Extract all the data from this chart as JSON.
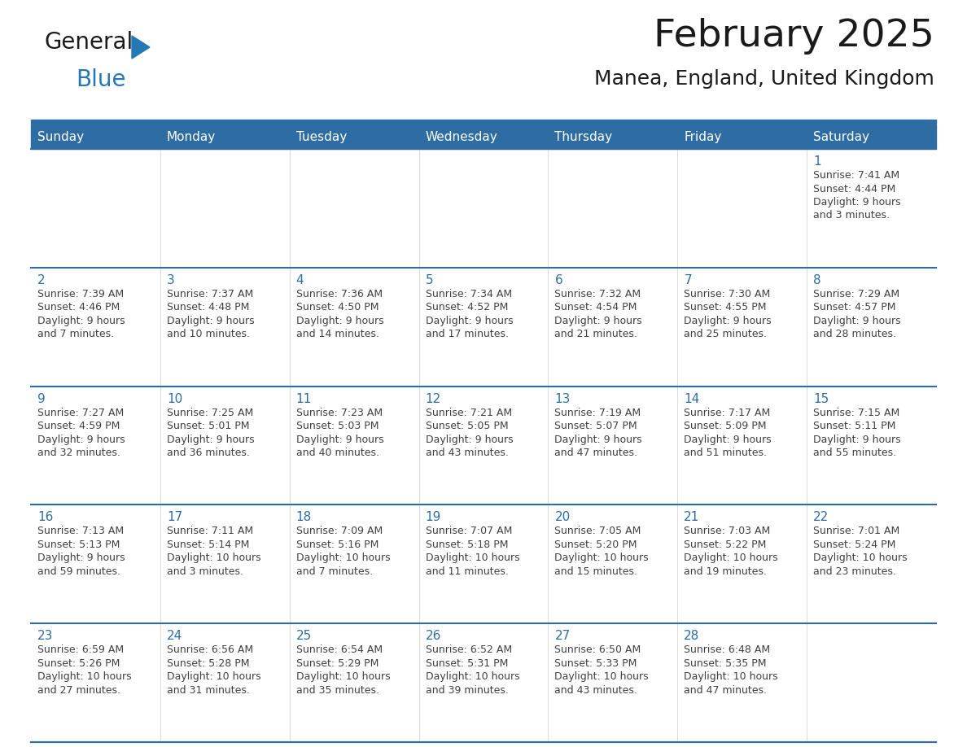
{
  "title": "February 2025",
  "subtitle": "Manea, England, United Kingdom",
  "header_bg_color": "#2E6DA4",
  "header_text_color": "#FFFFFF",
  "cell_bg_color": "#FFFFFF",
  "day_headers": [
    "Sunday",
    "Monday",
    "Tuesday",
    "Wednesday",
    "Thursday",
    "Friday",
    "Saturday"
  ],
  "title_color": "#1a1a1a",
  "subtitle_color": "#1a1a1a",
  "day_number_color": "#2E6DA4",
  "cell_text_color": "#404040",
  "separator_color": "#2E6DA4",
  "logo_general_color": "#1a1a1a",
  "logo_blue_color": "#2479B5",
  "calendar_data": [
    [
      {
        "day": null,
        "info": ""
      },
      {
        "day": null,
        "info": ""
      },
      {
        "day": null,
        "info": ""
      },
      {
        "day": null,
        "info": ""
      },
      {
        "day": null,
        "info": ""
      },
      {
        "day": null,
        "info": ""
      },
      {
        "day": 1,
        "info": "Sunrise: 7:41 AM\nSunset: 4:44 PM\nDaylight: 9 hours\nand 3 minutes."
      }
    ],
    [
      {
        "day": 2,
        "info": "Sunrise: 7:39 AM\nSunset: 4:46 PM\nDaylight: 9 hours\nand 7 minutes."
      },
      {
        "day": 3,
        "info": "Sunrise: 7:37 AM\nSunset: 4:48 PM\nDaylight: 9 hours\nand 10 minutes."
      },
      {
        "day": 4,
        "info": "Sunrise: 7:36 AM\nSunset: 4:50 PM\nDaylight: 9 hours\nand 14 minutes."
      },
      {
        "day": 5,
        "info": "Sunrise: 7:34 AM\nSunset: 4:52 PM\nDaylight: 9 hours\nand 17 minutes."
      },
      {
        "day": 6,
        "info": "Sunrise: 7:32 AM\nSunset: 4:54 PM\nDaylight: 9 hours\nand 21 minutes."
      },
      {
        "day": 7,
        "info": "Sunrise: 7:30 AM\nSunset: 4:55 PM\nDaylight: 9 hours\nand 25 minutes."
      },
      {
        "day": 8,
        "info": "Sunrise: 7:29 AM\nSunset: 4:57 PM\nDaylight: 9 hours\nand 28 minutes."
      }
    ],
    [
      {
        "day": 9,
        "info": "Sunrise: 7:27 AM\nSunset: 4:59 PM\nDaylight: 9 hours\nand 32 minutes."
      },
      {
        "day": 10,
        "info": "Sunrise: 7:25 AM\nSunset: 5:01 PM\nDaylight: 9 hours\nand 36 minutes."
      },
      {
        "day": 11,
        "info": "Sunrise: 7:23 AM\nSunset: 5:03 PM\nDaylight: 9 hours\nand 40 minutes."
      },
      {
        "day": 12,
        "info": "Sunrise: 7:21 AM\nSunset: 5:05 PM\nDaylight: 9 hours\nand 43 minutes."
      },
      {
        "day": 13,
        "info": "Sunrise: 7:19 AM\nSunset: 5:07 PM\nDaylight: 9 hours\nand 47 minutes."
      },
      {
        "day": 14,
        "info": "Sunrise: 7:17 AM\nSunset: 5:09 PM\nDaylight: 9 hours\nand 51 minutes."
      },
      {
        "day": 15,
        "info": "Sunrise: 7:15 AM\nSunset: 5:11 PM\nDaylight: 9 hours\nand 55 minutes."
      }
    ],
    [
      {
        "day": 16,
        "info": "Sunrise: 7:13 AM\nSunset: 5:13 PM\nDaylight: 9 hours\nand 59 minutes."
      },
      {
        "day": 17,
        "info": "Sunrise: 7:11 AM\nSunset: 5:14 PM\nDaylight: 10 hours\nand 3 minutes."
      },
      {
        "day": 18,
        "info": "Sunrise: 7:09 AM\nSunset: 5:16 PM\nDaylight: 10 hours\nand 7 minutes."
      },
      {
        "day": 19,
        "info": "Sunrise: 7:07 AM\nSunset: 5:18 PM\nDaylight: 10 hours\nand 11 minutes."
      },
      {
        "day": 20,
        "info": "Sunrise: 7:05 AM\nSunset: 5:20 PM\nDaylight: 10 hours\nand 15 minutes."
      },
      {
        "day": 21,
        "info": "Sunrise: 7:03 AM\nSunset: 5:22 PM\nDaylight: 10 hours\nand 19 minutes."
      },
      {
        "day": 22,
        "info": "Sunrise: 7:01 AM\nSunset: 5:24 PM\nDaylight: 10 hours\nand 23 minutes."
      }
    ],
    [
      {
        "day": 23,
        "info": "Sunrise: 6:59 AM\nSunset: 5:26 PM\nDaylight: 10 hours\nand 27 minutes."
      },
      {
        "day": 24,
        "info": "Sunrise: 6:56 AM\nSunset: 5:28 PM\nDaylight: 10 hours\nand 31 minutes."
      },
      {
        "day": 25,
        "info": "Sunrise: 6:54 AM\nSunset: 5:29 PM\nDaylight: 10 hours\nand 35 minutes."
      },
      {
        "day": 26,
        "info": "Sunrise: 6:52 AM\nSunset: 5:31 PM\nDaylight: 10 hours\nand 39 minutes."
      },
      {
        "day": 27,
        "info": "Sunrise: 6:50 AM\nSunset: 5:33 PM\nDaylight: 10 hours\nand 43 minutes."
      },
      {
        "day": 28,
        "info": "Sunrise: 6:48 AM\nSunset: 5:35 PM\nDaylight: 10 hours\nand 47 minutes."
      },
      {
        "day": null,
        "info": ""
      }
    ]
  ],
  "title_fontsize": 34,
  "subtitle_fontsize": 18,
  "header_fontsize": 11,
  "day_num_fontsize": 11,
  "cell_text_fontsize": 9
}
